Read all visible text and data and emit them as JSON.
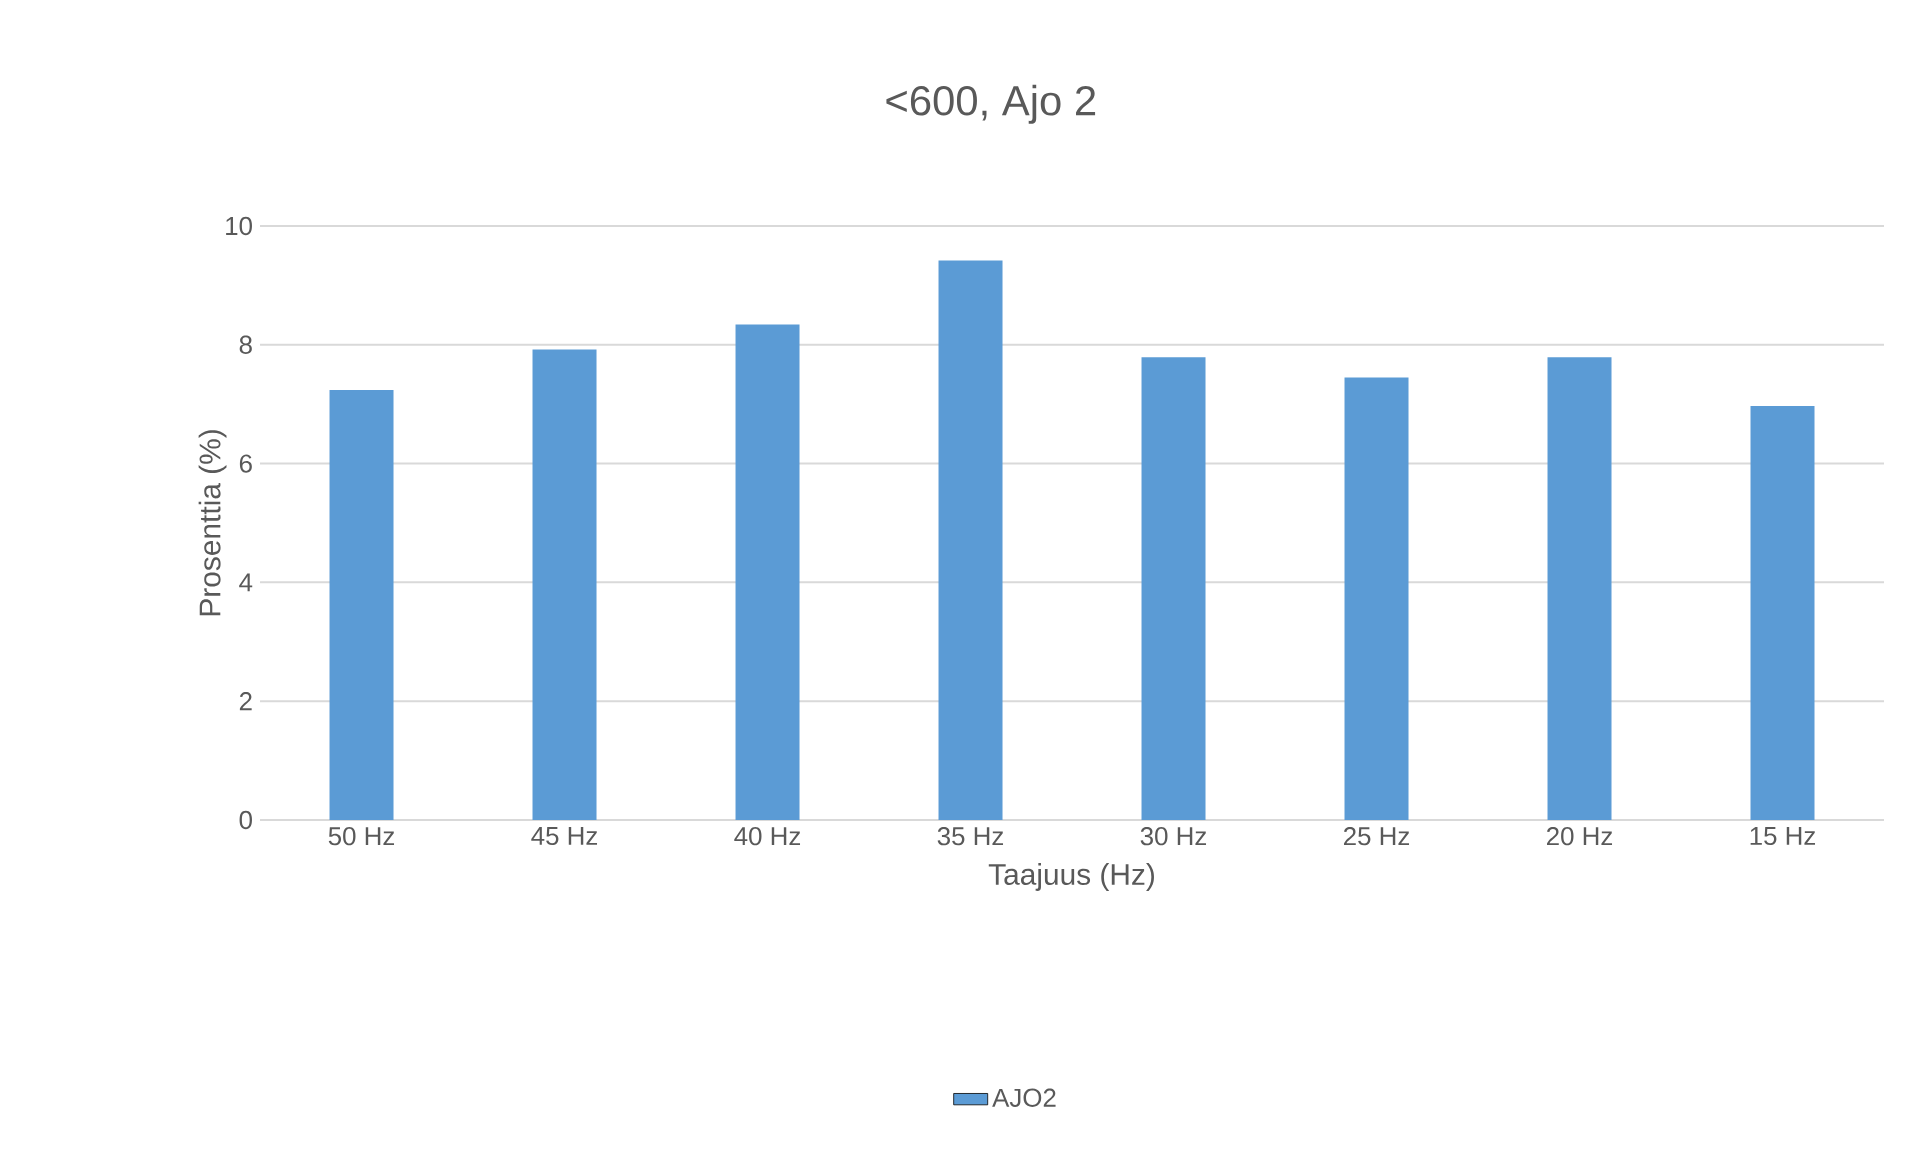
{
  "chart_data": {
    "type": "bar",
    "title": "<600, Ajo 2",
    "xlabel": "Taajuus (Hz)",
    "ylabel": "Prosenttia (%)",
    "categories": [
      "50 Hz",
      "45 Hz",
      "40 Hz",
      "35 Hz",
      "30 Hz",
      "25 Hz",
      "20 Hz",
      "15 Hz"
    ],
    "series": [
      {
        "name": "AJO2",
        "color": "#5b9bd5",
        "values": [
          7.24,
          7.92,
          8.34,
          9.42,
          7.79,
          7.45,
          7.79,
          6.97
        ]
      }
    ],
    "ylim": [
      0,
      10
    ],
    "yticks": [
      0,
      2,
      4,
      6,
      8,
      10
    ],
    "grid": "y",
    "legend": "bottom"
  }
}
